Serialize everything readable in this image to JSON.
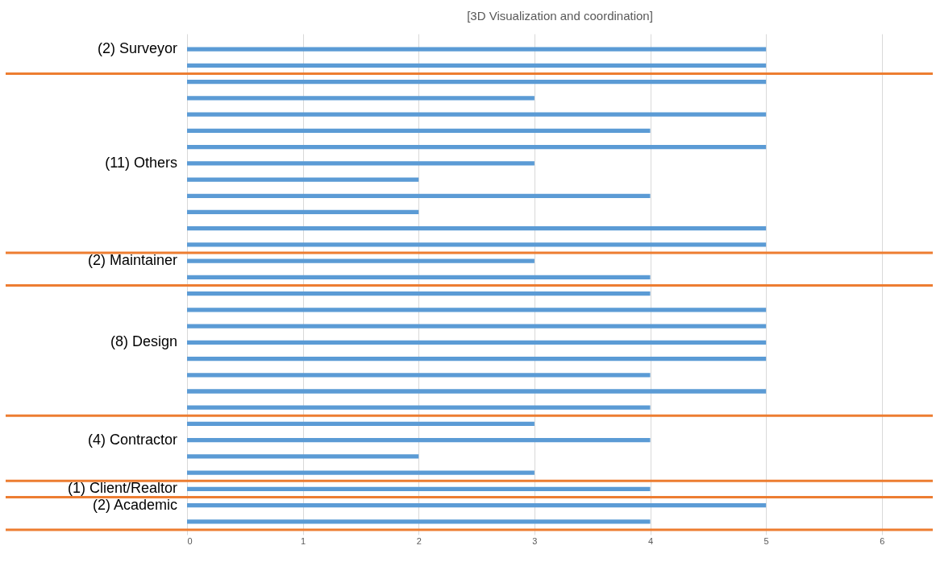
{
  "chart_data": {
    "type": "bar",
    "orientation": "horizontal",
    "title": "[3D Visualization and coordination]",
    "categories": [
      "(2) Surveyor",
      null,
      null,
      null,
      null,
      null,
      null,
      "(11) Others",
      null,
      null,
      null,
      null,
      null,
      "(2) Maintainer",
      null,
      null,
      null,
      null,
      "(8) Design",
      null,
      null,
      null,
      null,
      null,
      "(4) Contractor",
      null,
      null,
      "(1) Client/Realtor",
      "(2) Academic",
      null
    ],
    "values": [
      5,
      5,
      5,
      3,
      5,
      4,
      5,
      3,
      2,
      4,
      2,
      5,
      5,
      3,
      4,
      4,
      5,
      5,
      5,
      5,
      4,
      5,
      4,
      3,
      4,
      2,
      3,
      4,
      5,
      4
    ],
    "color": "#5b9bd5",
    "xlim": [
      0,
      6.44
    ],
    "xticks": [
      0,
      1,
      2,
      3,
      4,
      5,
      6
    ],
    "grid": true
  }
}
